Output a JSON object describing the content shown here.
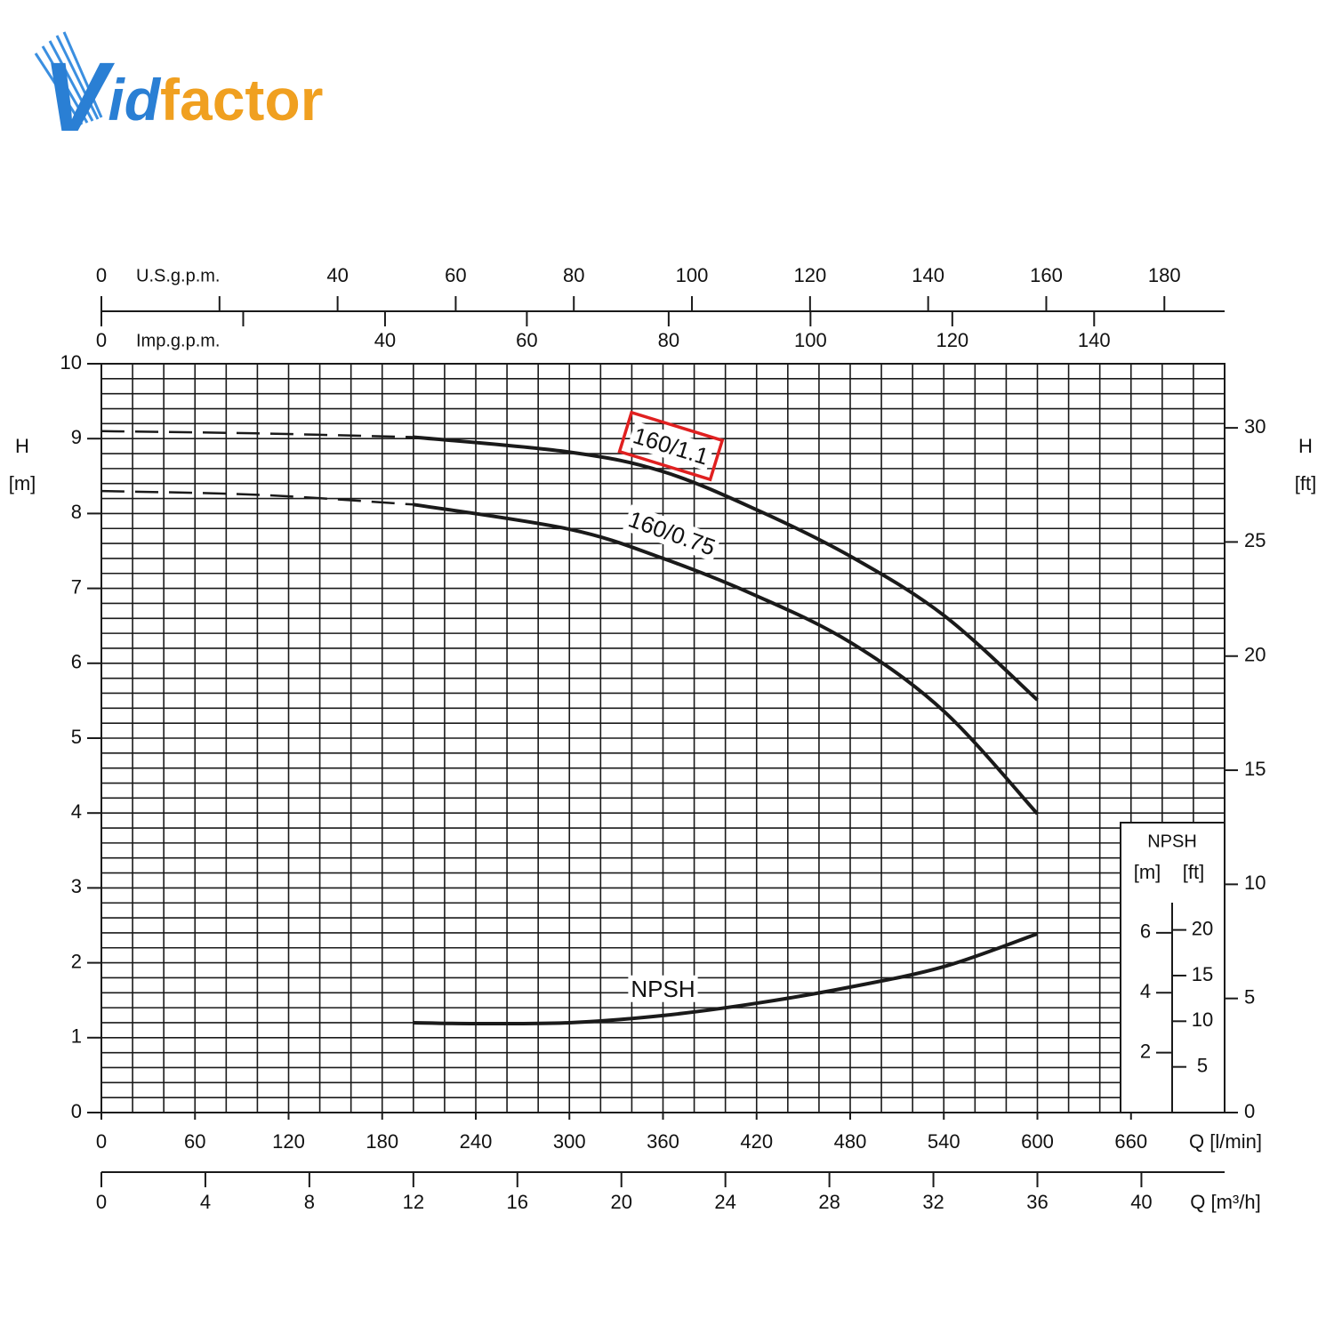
{
  "logo": [
    "V",
    "id",
    "factor"
  ],
  "chart_data": {
    "type": "line",
    "xlabel": "Q [l/min]",
    "xlim": [
      0,
      720
    ],
    "xticks": [
      0,
      60,
      120,
      180,
      240,
      300,
      360,
      420,
      480,
      540,
      600,
      660
    ],
    "ylabel": "H",
    "ylabel_unit": "[m]",
    "ylim": [
      0,
      10
    ],
    "yticks": [
      0,
      1,
      2,
      3,
      4,
      5,
      6,
      7,
      8,
      9,
      10
    ],
    "y2label": "H",
    "y2label_unit": "[ft]",
    "y2lim": [
      0,
      32.81
    ],
    "y2ticks": [
      0,
      5,
      10,
      15,
      20,
      25,
      30
    ],
    "x2": {
      "label": "Q [m³/h]",
      "lim": [
        0,
        43.2
      ],
      "ticks": [
        0,
        4,
        8,
        12,
        16,
        20,
        24,
        28,
        32,
        36,
        40
      ]
    },
    "top_axes": [
      {
        "label": "U.S.g.p.m.",
        "lim": [
          0,
          190.2
        ],
        "ticks": [
          0,
          {
            "value": 20,
            "label": null
          },
          40,
          60,
          80,
          100,
          120,
          140,
          160,
          180
        ]
      },
      {
        "label": "Imp.g.p.m.",
        "lim": [
          0,
          158.4
        ],
        "ticks": [
          0,
          {
            "value": 20,
            "label": null
          },
          40,
          60,
          80,
          100,
          120,
          140
        ]
      }
    ],
    "grid": true,
    "grid_x_step": 20,
    "grid_y_step": 0.2,
    "npsh_axes": {
      "title": "NPSH",
      "m_label": "[m]",
      "ft_label": "[ft]",
      "mlim": [
        0,
        25
      ],
      "mticks": [
        2,
        4,
        6
      ],
      "ftlim": [
        0,
        82
      ],
      "ftticks": [
        5,
        10,
        15,
        20
      ]
    },
    "series": [
      {
        "name": "160/1.1",
        "color": "#1a1a1a",
        "highlight_color": "#e02020",
        "dashed_below": 200,
        "x": [
          0,
          100,
          200,
          300,
          360,
          420,
          480,
          540,
          600
        ],
        "values": [
          9.1,
          9.07,
          9.02,
          8.82,
          8.56,
          8.05,
          7.43,
          6.64,
          5.51
        ]
      },
      {
        "name": "160/0.75",
        "color": "#1a1a1a",
        "dashed_below": 200,
        "x": [
          0,
          100,
          200,
          300,
          360,
          420,
          480,
          540,
          600
        ],
        "values": [
          8.3,
          8.25,
          8.12,
          7.79,
          7.4,
          6.9,
          6.28,
          5.36,
          3.99
        ]
      },
      {
        "name": "NPSH",
        "color": "#1a1a1a",
        "axis": "npsh",
        "x": [
          200,
          240,
          300,
          360,
          420,
          480,
          540,
          600
        ],
        "values": [
          3.0,
          2.97,
          3.0,
          3.24,
          3.65,
          4.19,
          4.87,
          5.97
        ]
      }
    ]
  }
}
